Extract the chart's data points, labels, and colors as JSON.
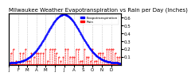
{
  "title": "Milwaukee Weather Evapotranspiration vs Rain per Day (Inches)",
  "legend_labels": [
    "Evapotranspiration",
    "Rain"
  ],
  "background_color": "#ffffff",
  "grid_color": "#aaaaaa",
  "et_color": "#0000ff",
  "rain_color": "#ff0000",
  "month_starts": [
    0,
    31,
    59,
    90,
    120,
    151,
    181,
    212,
    243,
    273,
    304,
    334
  ],
  "month_labels": [
    "J",
    "F",
    "M",
    "A",
    "M",
    "J",
    "J",
    "A",
    "S",
    "O",
    "N",
    "D"
  ],
  "ylim": [
    0,
    0.65
  ],
  "title_fontsize": 5,
  "tick_fontsize": 4
}
